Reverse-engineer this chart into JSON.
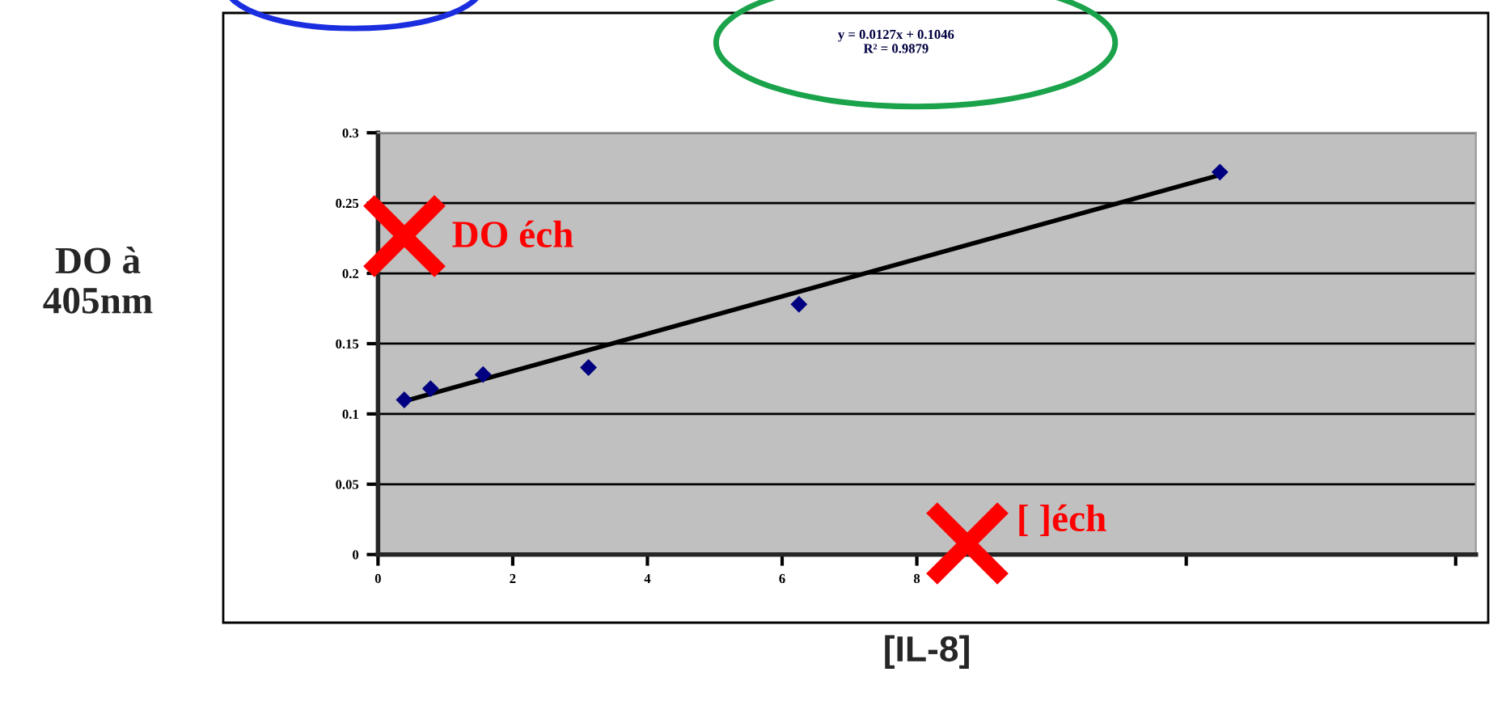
{
  "chart_data": {
    "type": "scatter",
    "xlabel": "[IL-8]",
    "ylabel": "DO à\n405nm",
    "annotations": [
      "y = 0.0127x + 0.1046\nR² = 0.9879",
      "DO éch",
      "[ ]éch"
    ],
    "series": [
      {
        "type": "scatter",
        "color": "#000080",
        "marker": "diamond",
        "x": [
          0.39,
          0.78,
          1.56,
          3.125,
          6.25,
          12.5
        ],
        "values": [
          0.11,
          0.118,
          0.128,
          0.133,
          0.178,
          0.272
        ]
      },
      {
        "type": "line",
        "color": "#000000",
        "marker": "none",
        "line_style": "solid",
        "x": [
          0.39,
          12.5
        ],
        "values": [
          0.109,
          0.27
        ]
      }
    ],
    "xlim": [
      0,
      16.3
    ],
    "ylim": [
      0,
      0.3
    ],
    "xticks": [
      0,
      2,
      4,
      6,
      8,
      {
        "value": 12,
        "label": null
      },
      {
        "value": 16,
        "label": null
      }
    ],
    "yticks": [
      0,
      0.05,
      0.1,
      0.15,
      0.2,
      0.25,
      0.3
    ],
    "grid": "y",
    "legend": false
  }
}
